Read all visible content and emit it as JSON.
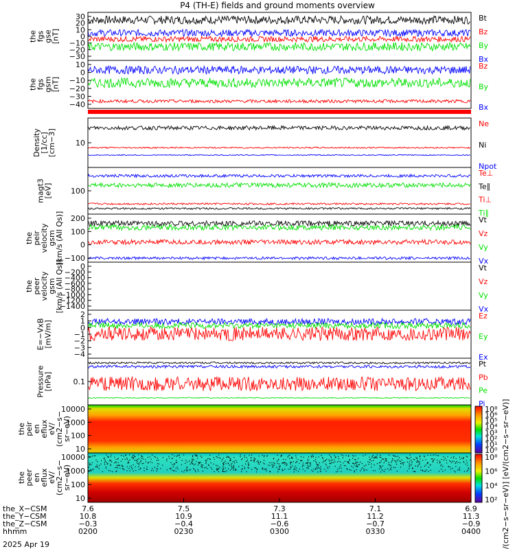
{
  "title": "P4 (TH-E) fields and ground moments overview",
  "date_label": "2025 Apr 19",
  "colors": {
    "black": "#000000",
    "red": "#ff0000",
    "green": "#00e000",
    "blue": "#0000ff"
  },
  "panels": [
    {
      "id": "fgs_gse",
      "ylabel": [
        "the",
        "fgs",
        "gse",
        "[nT]"
      ],
      "yticks": [
        "30",
        "20",
        "10",
        "0",
        "−10",
        "−20",
        "−30"
      ],
      "legend": [
        {
          "text": "Bt",
          "color": "black"
        },
        {
          "text": "Bz",
          "color": "red"
        },
        {
          "text": "By",
          "color": "green"
        },
        {
          "text": "Bx",
          "color": "blue"
        }
      ],
      "series": [
        {
          "color": "black",
          "level": 24,
          "noise": 6
        },
        {
          "color": "blue",
          "level": 5,
          "noise": 5
        },
        {
          "color": "red",
          "level": -4,
          "noise": 4
        },
        {
          "color": "green",
          "level": -15,
          "noise": 6
        }
      ],
      "ylim": [
        -35,
        35
      ]
    },
    {
      "id": "fgs_gsm",
      "ylabel": [
        "the",
        "fgs",
        "gsm",
        "[nT]"
      ],
      "yticks": [
        "10",
        "0",
        "−10",
        "−20",
        "−30",
        "−40"
      ],
      "legend": [
        {
          "text": "Bz",
          "color": "red"
        },
        {
          "text": "By",
          "color": "green"
        },
        {
          "text": "Bx",
          "color": "blue"
        }
      ],
      "series": [
        {
          "color": "blue",
          "level": 3,
          "noise": 5
        },
        {
          "color": "green",
          "level": -13,
          "noise": 6
        },
        {
          "color": "red",
          "level": -36,
          "noise": 2
        }
      ],
      "ylim": [
        -45,
        15
      ]
    },
    {
      "id": "density",
      "ylabel": [
        "Density",
        "[1/cc]",
        "[cm−3]"
      ],
      "yticks": [
        "10"
      ],
      "legend": [
        {
          "text": "Ne",
          "color": "red"
        },
        {
          "text": "Ni",
          "color": "black"
        },
        {
          "text": "Npot",
          "color": "blue"
        }
      ],
      "series": [
        {
          "color": "black",
          "level": 80,
          "noise": 4
        },
        {
          "color": "red",
          "level": 40,
          "noise": 1.5
        },
        {
          "color": "blue",
          "level": 25,
          "noise": 1
        }
      ],
      "ylim": [
        0,
        100
      ]
    },
    {
      "id": "temperature",
      "ylabel": [
        "magt3",
        "[eV]"
      ],
      "yticks": [
        "100"
      ],
      "legend": [
        {
          "text": "Te⊥",
          "color": "red"
        },
        {
          "text": "Te∥",
          "color": "black"
        },
        {
          "text": "Ti⊥",
          "color": "red"
        },
        {
          "text": "Ti∥",
          "color": "green"
        }
      ],
      "series": [
        {
          "color": "blue",
          "level": 82,
          "noise": 3
        },
        {
          "color": "green",
          "level": 62,
          "noise": 5
        },
        {
          "color": "red",
          "level": 22,
          "noise": 2
        },
        {
          "color": "black",
          "level": 12,
          "noise": 2
        }
      ],
      "ylim": [
        0,
        100
      ]
    },
    {
      "id": "peir_velocity",
      "ylabel": [
        "the",
        "peir",
        "velocity",
        "gsm",
        "[km/s (All Qs)]"
      ],
      "yticks": [
        "200",
        "100",
        "0",
        "−100"
      ],
      "legend": [
        {
          "text": "Vt",
          "color": "black"
        },
        {
          "text": "Vz",
          "color": "red"
        },
        {
          "text": "Vy",
          "color": "green"
        },
        {
          "text": "Vx",
          "color": "blue"
        }
      ],
      "series": [
        {
          "color": "black",
          "level": 160,
          "noise": 20
        },
        {
          "color": "green",
          "level": 130,
          "noise": 20
        },
        {
          "color": "red",
          "level": 20,
          "noise": 18
        },
        {
          "color": "blue",
          "level": -100,
          "noise": 10
        }
      ],
      "ylim": [
        -130,
        230
      ]
    },
    {
      "id": "peer_velocity",
      "ylabel": [
        "the",
        "peer",
        "velocity",
        "gsm",
        "[km/s (All Qs)]"
      ],
      "yticks": [
        "0",
        "−200",
        "−400",
        "−600",
        "−800",
        "−1000",
        "−1200",
        "−1400"
      ],
      "legend": [
        {
          "text": "Vt",
          "color": "black"
        },
        {
          "text": "Vz",
          "color": "red"
        },
        {
          "text": "Vy",
          "color": "green"
        },
        {
          "text": "Vx",
          "color": "blue"
        }
      ],
      "series": [],
      "ylim": [
        -1450,
        50
      ]
    },
    {
      "id": "efield",
      "ylabel": [
        "E=−VxB",
        "[mV/m]"
      ],
      "yticks": [
        "2",
        "1",
        "0",
        "−1",
        "−2",
        "−3",
        "−4"
      ],
      "legend": [
        {
          "text": "Ez",
          "color": "red"
        },
        {
          "text": "Ey",
          "color": "green"
        },
        {
          "text": "Ex",
          "color": "blue"
        }
      ],
      "series": [
        {
          "color": "blue",
          "level": 0.8,
          "noise": 0.4
        },
        {
          "color": "green",
          "level": 0.3,
          "noise": 0.4
        },
        {
          "color": "red",
          "level": -0.8,
          "noise": 0.9
        }
      ],
      "ylim": [
        -4,
        2.3
      ]
    },
    {
      "id": "pressure",
      "ylabel": [
        "Pressure",
        "[nPa]"
      ],
      "yticks": [
        "0.1"
      ],
      "legend": [
        {
          "text": "Pt",
          "color": "black"
        },
        {
          "text": "Pb",
          "color": "red"
        },
        {
          "text": "Pe",
          "color": "green"
        },
        {
          "text": "Pi",
          "color": "blue"
        }
      ],
      "series": [
        {
          "color": "black",
          "level": 90,
          "noise": 2
        },
        {
          "color": "blue",
          "level": 82,
          "noise": 3
        },
        {
          "color": "red",
          "level": 45,
          "noise": 15
        },
        {
          "color": "green",
          "level": 15,
          "noise": 1
        }
      ],
      "ylim": [
        0,
        100
      ]
    },
    {
      "id": "peir_eflux",
      "ylabel": [
        "the",
        "peir",
        "en",
        "eflux",
        "eV/",
        "(cm2−s−",
        "sr−eV)"
      ],
      "yticks": [
        "10000",
        "1000",
        "100",
        "10"
      ],
      "legend": [],
      "series": [],
      "spectrogram": "ion",
      "ylim": [
        0,
        1
      ]
    },
    {
      "id": "peer_eflux",
      "ylabel": [
        "the",
        "peer",
        "en",
        "eflux",
        "eV/",
        "(cm2−s−",
        "sr−eV)"
      ],
      "yticks": [
        "10000",
        "1000",
        "100",
        "10"
      ],
      "legend": [],
      "series": [],
      "spectrogram": "electron",
      "ylim": [
        0,
        1
      ]
    }
  ],
  "colorbar": {
    "label": "[eV/(cm2−s−sr−eV)] [eV/(cm2−s−sr−eV)]",
    "ticks_ion": [
      "10⁸",
      "10⁶",
      "10⁵",
      "10⁴",
      "10³",
      "10²",
      "10¹",
      "10⁰"
    ],
    "ticks_electron": [
      "10⁸",
      "10⁶",
      "10⁴",
      "10²"
    ]
  },
  "xaxis": {
    "rows": [
      {
        "label": "the_X−CSM",
        "values": [
          "7.6",
          "7.5",
          "7.3",
          "7.1",
          "6.9"
        ]
      },
      {
        "label": "the_Y−CSM",
        "values": [
          "10.8",
          "10.9",
          "11.1",
          "11.2",
          "11.3"
        ]
      },
      {
        "label": "the_Z−CSM",
        "values": [
          "−0.3",
          "−0.4",
          "−0.6",
          "−0.7",
          "−0.9"
        ]
      },
      {
        "label": "hhmm",
        "values": [
          "0200",
          "0230",
          "0300",
          "0330",
          "0400"
        ]
      }
    ]
  }
}
